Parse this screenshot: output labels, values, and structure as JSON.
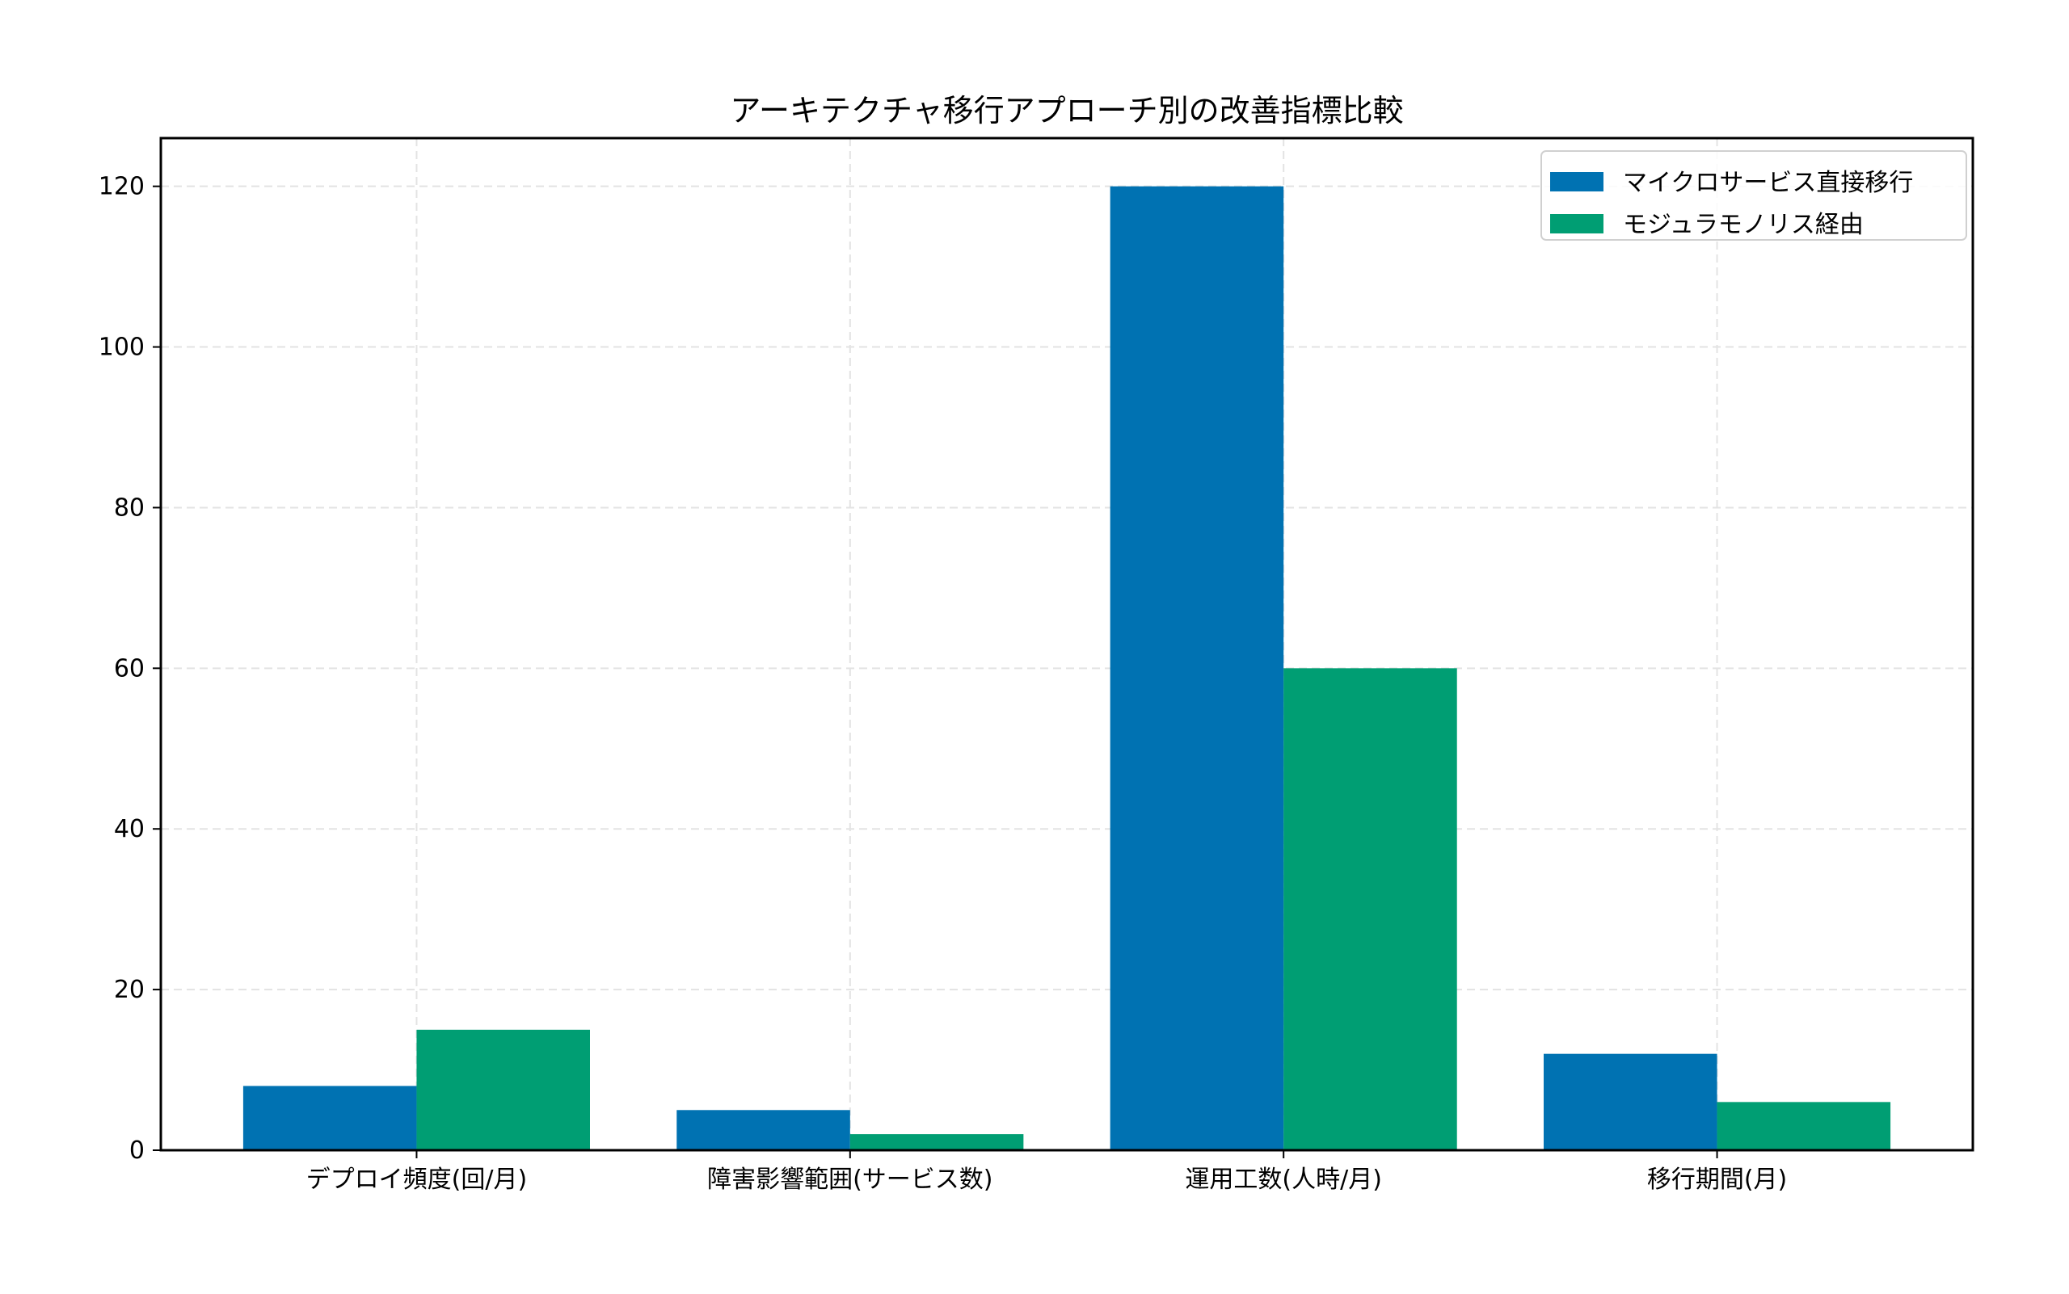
{
  "chart_data": {
    "type": "bar",
    "title": "アーキテクチャ移行アプローチ別の改善指標比較",
    "xlabel": "",
    "ylabel": "",
    "categories": [
      "デプロイ頻度(回/月)",
      "障害影響範囲(サービス数)",
      "運用工数(人時/月)",
      "移行期間(月)"
    ],
    "series": [
      {
        "name": "マイクロサービス直接移行",
        "color": "#0072B2",
        "values": [
          8,
          5,
          120,
          12
        ]
      },
      {
        "name": "モジュラモノリス経由",
        "color": "#009E73",
        "values": [
          15,
          2,
          60,
          6
        ]
      }
    ],
    "ylim": [
      0,
      126
    ],
    "yticks": [
      0,
      20,
      40,
      60,
      80,
      100,
      120
    ],
    "grid": true,
    "grid_style": "dashed",
    "legend_position": "upper right"
  }
}
